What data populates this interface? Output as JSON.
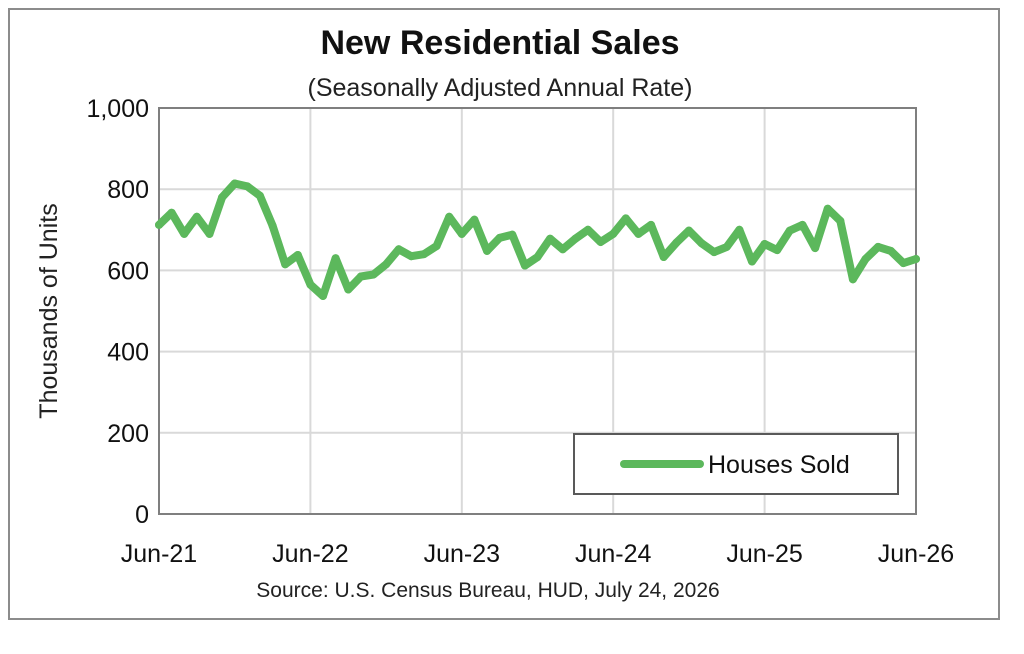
{
  "chart_data": {
    "type": "line",
    "title": "New Residential Sales",
    "subtitle": "(Seasonally Adjusted Annual Rate)",
    "ylabel": "Thousands of Units",
    "xlabel": "",
    "source": "Source:  U.S. Census Bureau, HUD, July 24, 2026",
    "ylim": [
      0,
      1000
    ],
    "y_ticks": [
      "0",
      "200",
      "400",
      "600",
      "800",
      "1,000"
    ],
    "y_tick_values": [
      0,
      200,
      400,
      600,
      800,
      1000
    ],
    "x_ticks": [
      "Jun-21",
      "Jun-22",
      "Jun-23",
      "Jun-24",
      "Jun-25",
      "Jun-26"
    ],
    "grid": true,
    "legend_position": "bottom-right",
    "series": [
      {
        "name": "Houses Sold",
        "color": "#5cb85c",
        "x": [
          "Jun-21",
          "Jul-21",
          "Aug-21",
          "Sep-21",
          "Oct-21",
          "Nov-21",
          "Dec-21",
          "Jan-22",
          "Feb-22",
          "Mar-22",
          "Apr-22",
          "May-22",
          "Jun-22",
          "Jul-22",
          "Aug-22",
          "Sep-22",
          "Oct-22",
          "Nov-22",
          "Dec-22",
          "Jan-23",
          "Feb-23",
          "Mar-23",
          "Apr-23",
          "May-23",
          "Jun-23",
          "Jul-23",
          "Aug-23",
          "Sep-23",
          "Oct-23",
          "Nov-23",
          "Dec-23",
          "Jan-24",
          "Feb-24",
          "Mar-24",
          "Apr-24",
          "May-24",
          "Jun-24",
          "Jul-24",
          "Aug-24",
          "Sep-24",
          "Oct-24",
          "Nov-24",
          "Dec-24",
          "Jan-25",
          "Feb-25",
          "Mar-25",
          "Apr-25",
          "May-25",
          "Jun-25",
          "Jul-25",
          "Aug-25",
          "Sep-25",
          "Oct-25",
          "Nov-25",
          "Dec-25",
          "Jan-26",
          "Feb-26",
          "Mar-26",
          "Apr-26",
          "May-26",
          "Jun-26"
        ],
        "values": [
          712,
          742,
          690,
          732,
          690,
          780,
          814,
          807,
          784,
          710,
          615,
          638,
          565,
          537,
          630,
          553,
          585,
          590,
          615,
          652,
          635,
          640,
          660,
          732,
          690,
          725,
          648,
          680,
          688,
          612,
          633,
          678,
          652,
          678,
          700,
          670,
          690,
          728,
          690,
          712,
          633,
          668,
          698,
          667,
          645,
          658,
          700,
          622,
          665,
          650,
          698,
          712,
          655,
          752,
          722,
          578,
          628,
          658,
          648,
          618,
          628
        ]
      }
    ]
  }
}
